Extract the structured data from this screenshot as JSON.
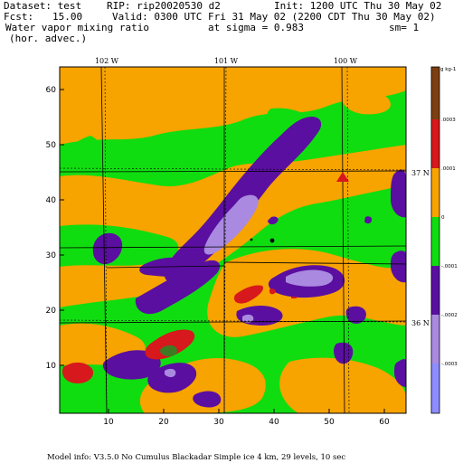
{
  "header": {
    "dataset": "Dataset: test",
    "rip": "RIP: rip20020530 d2",
    "init": "Init: 1200 UTC Thu 30 May 02",
    "fcst_label": "Fcst:",
    "fcst_value": "15.00",
    "valid": "Valid: 0300 UTC Fri 31 May 02 (2200 CDT Thu 30 May 02)",
    "field_name": "Water vapor mixing ratio",
    "sigma": "at sigma = 0.983",
    "sm": "sm= 1",
    "advection": "(hor. advec.)"
  },
  "map": {
    "longitude_labels": [
      "102 W",
      "101 W",
      "100 W"
    ],
    "latitude_labels": [
      "37 N",
      "36 N"
    ],
    "x_ticks": [
      "10",
      "20",
      "30",
      "40",
      "50",
      "60"
    ],
    "y_ticks": [
      "10",
      "20",
      "30",
      "40",
      "50",
      "60"
    ],
    "xlim": [
      1,
      64
    ],
    "ylim": [
      1,
      64
    ]
  },
  "colorbar": {
    "unit_label": "g kg-1",
    "tick_labels": [
      ".0003",
      ".0001",
      "0",
      "-.0001",
      "-.0002",
      "-.0003"
    ],
    "colors": [
      "#7b3f12",
      "#d7181c",
      "#f7a300",
      "#10dd10",
      "#5a0fa0",
      "#a98ae0",
      "#8d8dff"
    ]
  },
  "footer": {
    "model_info": "Model info: V3.5.0 No Cumulus Blackadar Simple ice 4 km, 29 levels, 10 sec"
  },
  "colors": {
    "orange": "#f7a300",
    "green": "#10dd10",
    "purple": "#5a0fa0",
    "lavender": "#a98ae0",
    "red": "#d7181c",
    "darkgreen": "#3f7a22",
    "brown": "#7b3f12",
    "blue": "#8d8dff"
  }
}
